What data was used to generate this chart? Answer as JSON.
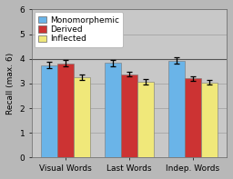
{
  "categories": [
    "Visual Words",
    "Last Words",
    "Indep. Words"
  ],
  "series": {
    "Monomorphemic": [
      3.75,
      3.83,
      3.92
    ],
    "Derived": [
      3.82,
      3.38,
      3.2
    ],
    "Inflected": [
      3.25,
      3.07,
      3.05
    ]
  },
  "errors": {
    "Monomorphemic": [
      0.13,
      0.14,
      0.13
    ],
    "Derived": [
      0.12,
      0.1,
      0.11
    ],
    "Inflected": [
      0.12,
      0.11,
      0.1
    ]
  },
  "colors": {
    "Monomorphemic": "#6ab4e8",
    "Derived": "#cc3333",
    "Inflected": "#f0e87a"
  },
  "ylabel": "Recall (max. 6)",
  "ylim": [
    0,
    6
  ],
  "yticks": [
    0,
    1,
    2,
    3,
    4,
    5,
    6
  ],
  "plot_bg_color": "#c8c8c8",
  "outer_bg_color": "#b8b8b8",
  "bar_width": 0.26,
  "legend_labels": [
    "Monomorphemic",
    "Derived",
    "Inflected"
  ],
  "axis_fontsize": 6.5,
  "tick_fontsize": 6.5,
  "legend_fontsize": 6.5,
  "grid_color": "#aaaaaa",
  "horizontal_line_color": "#555555"
}
